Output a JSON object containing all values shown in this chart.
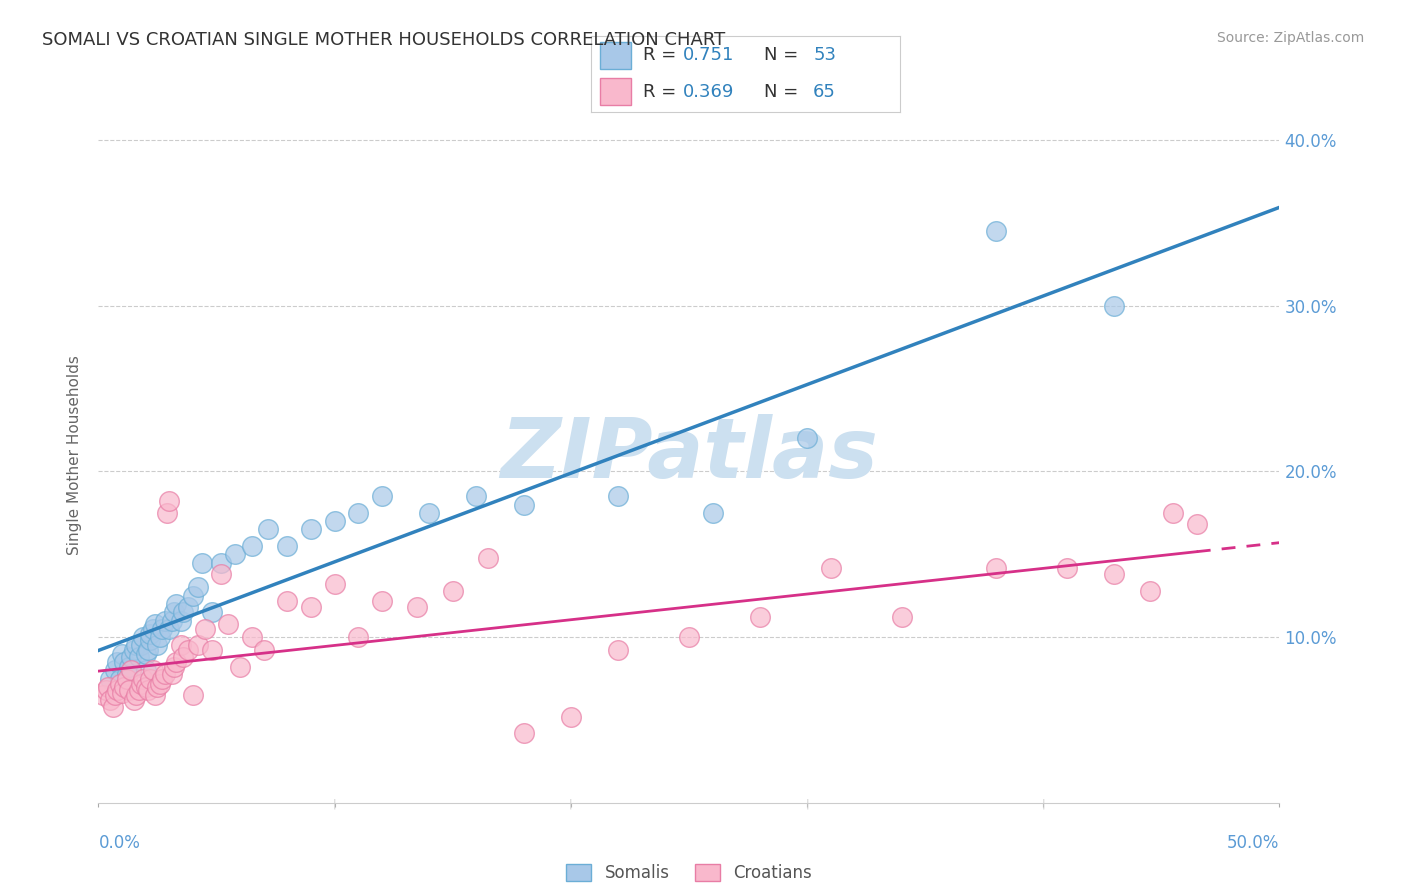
{
  "title": "SOMALI VS CROATIAN SINGLE MOTHER HOUSEHOLDS CORRELATION CHART",
  "source": "Source: ZipAtlas.com",
  "ylabel": "Single Mother Households",
  "xlim": [
    0.0,
    0.5
  ],
  "ylim": [
    0.0,
    0.42
  ],
  "yticks": [
    0.1,
    0.2,
    0.3,
    0.4
  ],
  "ytick_labels": [
    "10.0%",
    "20.0%",
    "30.0%",
    "40.0%"
  ],
  "somali_color": "#a8c8e8",
  "somali_edge": "#6baed6",
  "croatian_color": "#f9b8cc",
  "croatian_edge": "#e87da5",
  "trend_somali_color": "#3182bd",
  "trend_croatian_color": "#d63088",
  "tick_label_color": "#5b9bd5",
  "watermark_color": "#cce0f0",
  "legend_R_color": "#3182bd",
  "legend_N_color": "#3182bd",
  "somali_x": [
    0.005,
    0.007,
    0.008,
    0.009,
    0.01,
    0.011,
    0.012,
    0.013,
    0.014,
    0.015,
    0.016,
    0.017,
    0.018,
    0.019,
    0.02,
    0.02,
    0.021,
    0.022,
    0.022,
    0.023,
    0.024,
    0.025,
    0.026,
    0.027,
    0.028,
    0.03,
    0.031,
    0.032,
    0.033,
    0.035,
    0.036,
    0.038,
    0.04,
    0.042,
    0.044,
    0.048,
    0.052,
    0.058,
    0.065,
    0.072,
    0.08,
    0.09,
    0.1,
    0.11,
    0.12,
    0.14,
    0.16,
    0.18,
    0.22,
    0.26,
    0.3,
    0.38,
    0.43
  ],
  "somali_y": [
    0.075,
    0.08,
    0.085,
    0.075,
    0.09,
    0.085,
    0.078,
    0.082,
    0.088,
    0.092,
    0.095,
    0.088,
    0.095,
    0.1,
    0.08,
    0.09,
    0.092,
    0.098,
    0.102,
    0.105,
    0.108,
    0.095,
    0.1,
    0.105,
    0.11,
    0.105,
    0.11,
    0.115,
    0.12,
    0.11,
    0.115,
    0.118,
    0.125,
    0.13,
    0.145,
    0.115,
    0.145,
    0.15,
    0.155,
    0.165,
    0.155,
    0.165,
    0.17,
    0.175,
    0.185,
    0.175,
    0.185,
    0.18,
    0.185,
    0.175,
    0.22,
    0.345,
    0.3
  ],
  "croatian_x": [
    0.002,
    0.003,
    0.004,
    0.005,
    0.006,
    0.007,
    0.008,
    0.009,
    0.01,
    0.011,
    0.012,
    0.013,
    0.014,
    0.015,
    0.016,
    0.017,
    0.018,
    0.019,
    0.02,
    0.021,
    0.022,
    0.023,
    0.024,
    0.025,
    0.026,
    0.027,
    0.028,
    0.029,
    0.03,
    0.031,
    0.032,
    0.033,
    0.035,
    0.036,
    0.038,
    0.04,
    0.042,
    0.045,
    0.048,
    0.052,
    0.055,
    0.06,
    0.065,
    0.07,
    0.08,
    0.09,
    0.1,
    0.11,
    0.12,
    0.135,
    0.15,
    0.165,
    0.18,
    0.2,
    0.22,
    0.25,
    0.28,
    0.31,
    0.34,
    0.38,
    0.41,
    0.43,
    0.445,
    0.455,
    0.465
  ],
  "croatian_y": [
    0.065,
    0.068,
    0.07,
    0.062,
    0.058,
    0.065,
    0.068,
    0.072,
    0.066,
    0.07,
    0.075,
    0.068,
    0.08,
    0.062,
    0.065,
    0.068,
    0.072,
    0.075,
    0.07,
    0.068,
    0.075,
    0.08,
    0.065,
    0.07,
    0.072,
    0.075,
    0.078,
    0.175,
    0.182,
    0.078,
    0.082,
    0.085,
    0.095,
    0.088,
    0.092,
    0.065,
    0.095,
    0.105,
    0.092,
    0.138,
    0.108,
    0.082,
    0.1,
    0.092,
    0.122,
    0.118,
    0.132,
    0.1,
    0.122,
    0.118,
    0.128,
    0.148,
    0.042,
    0.052,
    0.092,
    0.1,
    0.112,
    0.142,
    0.112,
    0.142,
    0.142,
    0.138,
    0.128,
    0.175,
    0.168
  ],
  "background_color": "#ffffff",
  "grid_color": "#cccccc"
}
